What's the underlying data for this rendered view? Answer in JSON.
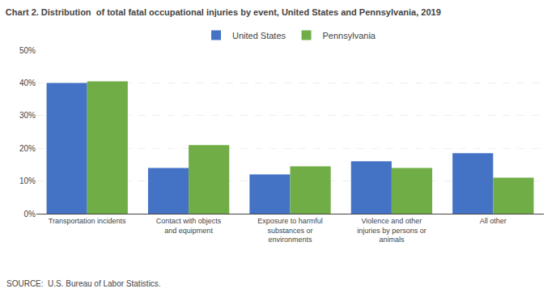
{
  "chart_data": {
    "type": "bar",
    "title": "Chart 2. Distribution  of total fatal occupational injuries by event, United States and Pennsylvania, 2019",
    "categories": [
      "Transportation incidents",
      "Contact with objects\nand equipment",
      "Exposure to harmful\nsubstances or\nenvironments",
      "Violence and other\ninjuries by persons or\nanimals",
      "All other"
    ],
    "series": [
      {
        "name": "United States",
        "color": "#4472C4",
        "values": [
          40,
          14,
          12,
          16,
          18.5
        ]
      },
      {
        "name": "Pennsylvania",
        "color": "#70AD47",
        "values": [
          40.5,
          21,
          14.5,
          14,
          11
        ]
      }
    ],
    "ylim": [
      0,
      50
    ],
    "yticks": [
      {
        "value": 0,
        "label": "0%"
      },
      {
        "value": 10,
        "label": "10%"
      },
      {
        "value": 20,
        "label": "20%"
      },
      {
        "value": 30,
        "label": "30%"
      },
      {
        "value": 40,
        "label": "40%"
      },
      {
        "value": 50,
        "label": "50%"
      }
    ],
    "grid": true,
    "legend": "top",
    "annotations": [
      "SOURCE:  U.S. Bureau of Labor Statistics."
    ]
  }
}
